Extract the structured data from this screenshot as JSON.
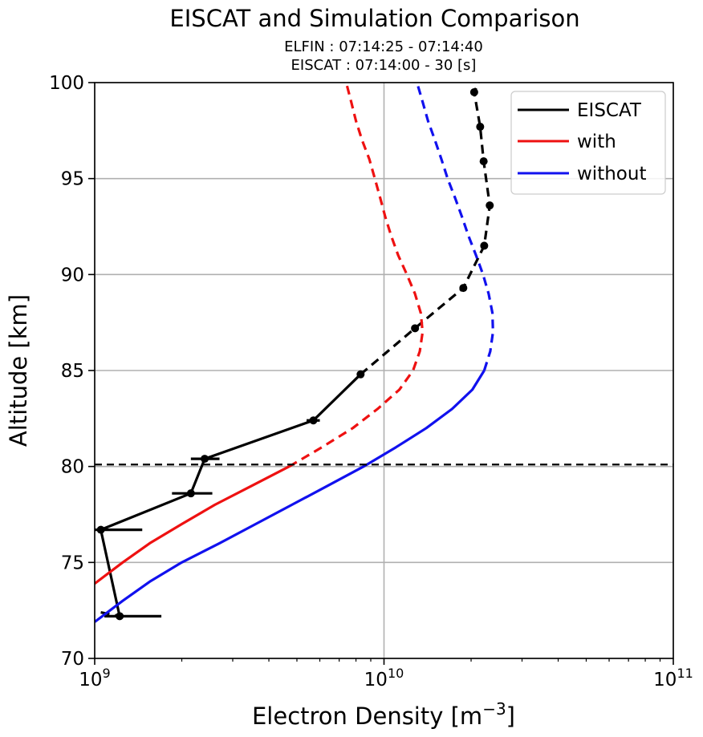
{
  "chart_data": {
    "type": "line",
    "title": "EISCAT and Simulation Comparison",
    "subtitle_lines": [
      "ELFIN : 07:14:25 - 07:14:40",
      "EISCAT : 07:14:00 - 30 [s]"
    ],
    "xlabel": "Electron Density [m",
    "xlabel_sup": "−3",
    "xlabel_end": "]",
    "ylabel": "Altitude [km]",
    "xscale": "log",
    "xlim": [
      1000000000.0,
      100000000000.0
    ],
    "ylim": [
      70,
      100
    ],
    "x_ticks": [
      {
        "value": 1000000000.0,
        "base": "10",
        "exp": "9"
      },
      {
        "value": 10000000000.0,
        "base": "10",
        "exp": "10"
      },
      {
        "value": 100000000000.0,
        "base": "10",
        "exp": "11"
      }
    ],
    "y_ticks": [
      {
        "value": 70,
        "label": "70"
      },
      {
        "value": 75,
        "label": "75"
      },
      {
        "value": 80,
        "label": "80"
      },
      {
        "value": 85,
        "label": "85"
      },
      {
        "value": 90,
        "label": "90"
      },
      {
        "value": 95,
        "label": "95"
      },
      {
        "value": 100,
        "label": "100"
      }
    ],
    "grid": true,
    "legend_position": "top-right",
    "reference_line": {
      "altitude_km": 80.1,
      "style": "dashed",
      "color": "#000000"
    },
    "series": [
      {
        "name": "EISCAT",
        "color": "#000000",
        "marker": "circle",
        "solid_below_km": 84.8,
        "points": [
          {
            "alt": 72.2,
            "ne": 1220000000.0,
            "err": [
              1080000000.0,
              1700000000.0
            ]
          },
          {
            "alt": 76.7,
            "ne": 1050000000.0,
            "err": [
              970000000.0,
              1460000000.0
            ]
          },
          {
            "alt": 78.6,
            "ne": 2150000000.0,
            "err": [
              1850000000.0,
              2550000000.0
            ]
          },
          {
            "alt": 80.4,
            "ne": 2400000000.0,
            "err": [
              2150000000.0,
              2700000000.0
            ]
          },
          {
            "alt": 82.4,
            "ne": 5700000000.0,
            "err": [
              5400000000.0,
              6000000000.0
            ]
          },
          {
            "alt": 84.8,
            "ne": 8300000000.0
          },
          {
            "alt": 87.2,
            "ne": 12800000000.0
          },
          {
            "alt": 89.3,
            "ne": 18800000000.0
          },
          {
            "alt": 91.5,
            "ne": 22200000000.0
          },
          {
            "alt": 93.6,
            "ne": 23200000000.0
          },
          {
            "alt": 95.9,
            "ne": 22100000000.0
          },
          {
            "alt": 97.7,
            "ne": 21500000000.0
          },
          {
            "alt": 99.5,
            "ne": 20500000000.0
          },
          {
            "alt": 100.0,
            "ne": 21200000000.0
          }
        ],
        "pre_segment": [
          {
            "alt": 72.4,
            "ne": 1050000000.0
          },
          {
            "alt": 72.2,
            "ne": 1220000000.0
          }
        ]
      },
      {
        "name": "with",
        "color": "#ee1111",
        "solid_below_km": 80.0,
        "points": [
          {
            "alt": 73.9,
            "ne": 1000000000.0
          },
          {
            "alt": 75.0,
            "ne": 1250000000.0
          },
          {
            "alt": 76.0,
            "ne": 1550000000.0
          },
          {
            "alt": 77.0,
            "ne": 2000000000.0
          },
          {
            "alt": 78.0,
            "ne": 2600000000.0
          },
          {
            "alt": 79.0,
            "ne": 3500000000.0
          },
          {
            "alt": 80.0,
            "ne": 4700000000.0
          },
          {
            "alt": 81.0,
            "ne": 6100000000.0
          },
          {
            "alt": 82.0,
            "ne": 7800000000.0
          },
          {
            "alt": 83.0,
            "ne": 9500000000.0
          },
          {
            "alt": 84.0,
            "ne": 11300000000.0
          },
          {
            "alt": 85.0,
            "ne": 12600000000.0
          },
          {
            "alt": 86.0,
            "ne": 13300000000.0
          },
          {
            "alt": 87.0,
            "ne": 13600000000.0
          },
          {
            "alt": 88.0,
            "ne": 13400000000.0
          },
          {
            "alt": 89.0,
            "ne": 12800000000.0
          },
          {
            "alt": 90.0,
            "ne": 12000000000.0
          },
          {
            "alt": 91.0,
            "ne": 11200000000.0
          },
          {
            "alt": 92.0,
            "ne": 10600000000.0
          },
          {
            "alt": 93.0,
            "ne": 10100000000.0
          },
          {
            "alt": 94.0,
            "ne": 9700000000.0
          },
          {
            "alt": 95.0,
            "ne": 9300000000.0
          },
          {
            "alt": 96.0,
            "ne": 8900000000.0
          },
          {
            "alt": 97.0,
            "ne": 8400000000.0
          },
          {
            "alt": 98.0,
            "ne": 8000000000.0
          },
          {
            "alt": 99.0,
            "ne": 7700000000.0
          },
          {
            "alt": 100.0,
            "ne": 7400000000.0
          }
        ]
      },
      {
        "name": "without",
        "color": "#1111ee",
        "solid_below_km": 85.0,
        "points": [
          {
            "alt": 71.9,
            "ne": 1000000000.0
          },
          {
            "alt": 73.0,
            "ne": 1250000000.0
          },
          {
            "alt": 74.0,
            "ne": 1550000000.0
          },
          {
            "alt": 75.0,
            "ne": 2000000000.0
          },
          {
            "alt": 76.0,
            "ne": 2700000000.0
          },
          {
            "alt": 77.0,
            "ne": 3600000000.0
          },
          {
            "alt": 78.0,
            "ne": 4800000000.0
          },
          {
            "alt": 79.0,
            "ne": 6400000000.0
          },
          {
            "alt": 80.0,
            "ne": 8500000000.0
          },
          {
            "alt": 81.0,
            "ne": 11000000000.0
          },
          {
            "alt": 82.0,
            "ne": 14000000000.0
          },
          {
            "alt": 83.0,
            "ne": 17200000000.0
          },
          {
            "alt": 84.0,
            "ne": 20200000000.0
          },
          {
            "alt": 85.0,
            "ne": 22200000000.0
          },
          {
            "alt": 86.0,
            "ne": 23300000000.0
          },
          {
            "alt": 87.0,
            "ne": 23800000000.0
          },
          {
            "alt": 88.0,
            "ne": 23700000000.0
          },
          {
            "alt": 89.0,
            "ne": 23000000000.0
          },
          {
            "alt": 90.0,
            "ne": 22000000000.0
          },
          {
            "alt": 91.0,
            "ne": 20800000000.0
          },
          {
            "alt": 92.0,
            "ne": 19600000000.0
          },
          {
            "alt": 93.0,
            "ne": 18600000000.0
          },
          {
            "alt": 94.0,
            "ne": 17600000000.0
          },
          {
            "alt": 95.0,
            "ne": 16600000000.0
          },
          {
            "alt": 96.0,
            "ne": 15800000000.0
          },
          {
            "alt": 97.0,
            "ne": 15000000000.0
          },
          {
            "alt": 98.0,
            "ne": 14200000000.0
          },
          {
            "alt": 99.0,
            "ne": 13600000000.0
          },
          {
            "alt": 100.0,
            "ne": 13000000000.0
          }
        ]
      }
    ]
  }
}
